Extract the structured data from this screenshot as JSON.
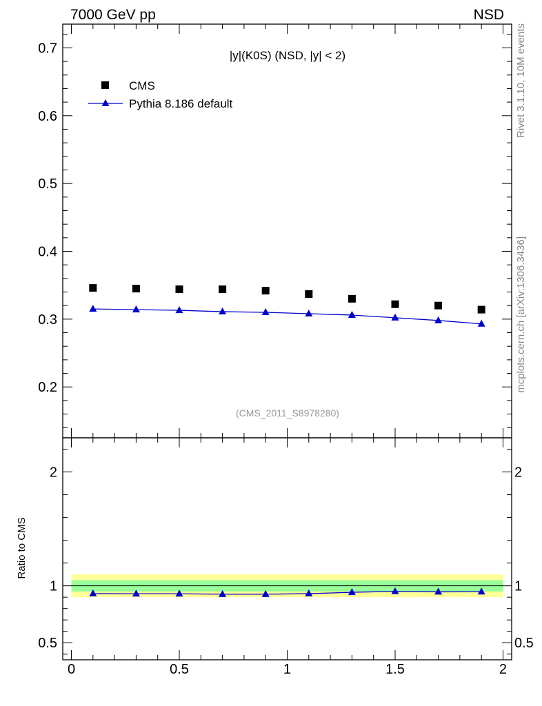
{
  "header": {
    "left": "7000 GeV pp",
    "right": "NSD"
  },
  "side_text": {
    "rivet": "Rivet 3.1.10,  10M events",
    "mcplots": "mcplots.cern.ch [arXiv:1306.3436]"
  },
  "colors": {
    "cms": "#000000",
    "pythia": "#0000cc",
    "band_outer": "#ffff99",
    "band_inner": "#99ff99",
    "watermark": "#999999"
  },
  "chart_data": [
    {
      "type": "scatter",
      "title": "|y|(K0S) (NSD, |y| < 2)",
      "watermark": "(CMS_2011_S8978280)",
      "xlim": [
        -0.04,
        2.04
      ],
      "ylim": [
        0.125,
        0.735
      ],
      "yticks": [
        0.2,
        0.3,
        0.4,
        0.5,
        0.6,
        0.7
      ],
      "ytick_labels": [
        "0.2",
        "0.3",
        "0.4",
        "0.5",
        "0.6",
        "0.7"
      ],
      "legend_position": "top-left",
      "series": [
        {
          "name": "CMS",
          "marker": "square",
          "x": [
            0.1,
            0.3,
            0.5,
            0.7,
            0.9,
            1.1,
            1.3,
            1.5,
            1.7,
            1.9
          ],
          "y": [
            0.346,
            0.345,
            0.344,
            0.344,
            0.342,
            0.337,
            0.33,
            0.322,
            0.32,
            0.314
          ]
        },
        {
          "name": "Pythia 8.186 default",
          "marker": "triangle",
          "line": true,
          "x": [
            0.1,
            0.3,
            0.5,
            0.7,
            0.9,
            1.1,
            1.3,
            1.5,
            1.7,
            1.9
          ],
          "y": [
            0.315,
            0.314,
            0.313,
            0.311,
            0.31,
            0.308,
            0.306,
            0.302,
            0.298,
            0.293
          ]
        }
      ]
    },
    {
      "type": "line",
      "ylabel": "Ratio to CMS",
      "xlim": [
        -0.04,
        2.04
      ],
      "ylim": [
        0.35,
        2.3
      ],
      "xticks": [
        0,
        0.5,
        1,
        1.5,
        2
      ],
      "xtick_labels": [
        "0",
        "0.5",
        "1",
        "1.5",
        "2"
      ],
      "yticks": [
        0.5,
        1,
        2
      ],
      "ytick_labels": [
        "0.5",
        "1",
        "2"
      ],
      "reference_line": 1,
      "bands": [
        {
          "level": "outer",
          "range": [
            0.9,
            1.1
          ]
        },
        {
          "level": "inner",
          "range": [
            0.95,
            1.05
          ]
        }
      ],
      "series": [
        {
          "name": "Pythia 8.186 default",
          "marker": "triangle",
          "x": [
            0.1,
            0.3,
            0.5,
            0.7,
            0.9,
            1.1,
            1.3,
            1.5,
            1.7,
            1.9
          ],
          "y": [
            0.931,
            0.93,
            0.93,
            0.926,
            0.926,
            0.931,
            0.943,
            0.951,
            0.947,
            0.948
          ]
        }
      ]
    }
  ]
}
